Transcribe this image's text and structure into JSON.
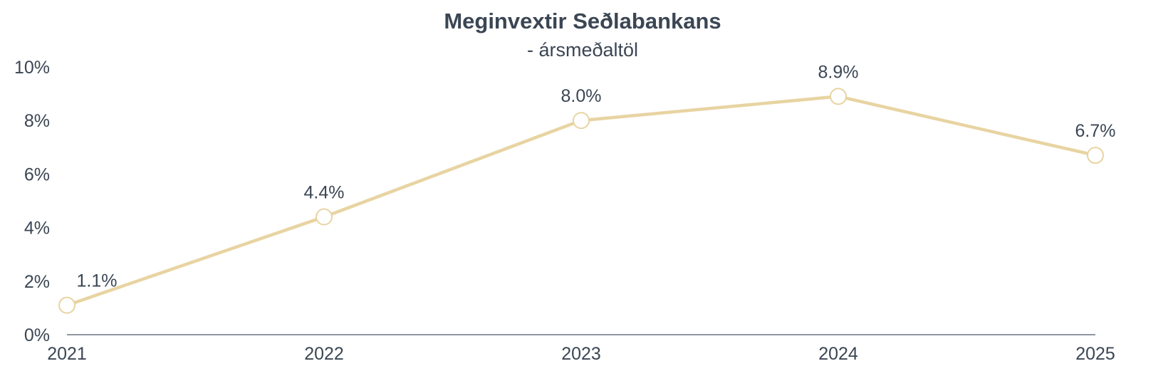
{
  "chart_data": {
    "type": "line",
    "title": "Meginvextir Seðlabankans",
    "subtitle": "- ársmeðaltöl",
    "categories": [
      "2021",
      "2022",
      "2023",
      "2024",
      "2025"
    ],
    "series": [
      {
        "values": [
          1.1,
          4.4,
          8.0,
          8.9,
          6.7
        ],
        "labels": [
          "1.1%",
          "4.4%",
          "8.0%",
          "8.9%",
          "6.7%"
        ],
        "color": "#e8d4a2"
      }
    ],
    "ylim": [
      0,
      10
    ],
    "yticks": [
      0,
      2,
      4,
      6,
      8,
      10
    ],
    "ytick_labels": [
      "0%",
      "2%",
      "4%",
      "6%",
      "8%",
      "10%"
    ],
    "grid": false,
    "legend": "none"
  },
  "colors": {
    "text": "#3b4654",
    "axis": "#6b7480",
    "line": "#e8d4a2",
    "marker_fill": "#ffffff"
  }
}
